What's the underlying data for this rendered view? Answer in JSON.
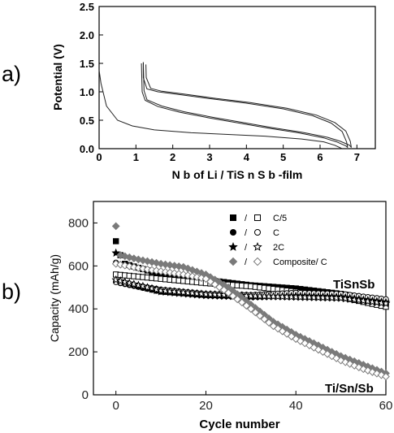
{
  "panel_labels": [
    "a)",
    "b)"
  ],
  "chart_data": [
    {
      "type": "line",
      "panel": "a)",
      "xlabel": "N b  of  Li / TiS n S b -film",
      "ylabel": "Potential (V)",
      "xlim": [
        0,
        7.5
      ],
      "ylim": [
        0,
        2.5
      ],
      "xticks": [
        "0",
        "1",
        "2",
        "3",
        "4",
        "5",
        "6",
        "7"
      ],
      "yticks": [
        "0.0",
        "0.5",
        "1.0",
        "1.5",
        "2.0",
        "2.5"
      ],
      "series": [
        {
          "x": [
            0.0,
            0.05,
            0.2,
            0.5,
            0.9,
            1.5,
            2.5,
            3.5,
            4.5,
            5.5,
            6.1,
            6.4,
            6.6
          ],
          "y": [
            1.38,
            1.15,
            0.75,
            0.5,
            0.4,
            0.33,
            0.28,
            0.25,
            0.22,
            0.17,
            0.12,
            0.06,
            0.0
          ]
        },
        {
          "x": [
            1.15,
            1.17,
            1.25,
            1.6,
            2.2,
            3.0,
            3.8,
            4.6,
            5.4,
            6.1,
            6.45,
            6.7,
            6.75
          ],
          "y": [
            1.5,
            1.0,
            0.85,
            0.74,
            0.64,
            0.54,
            0.45,
            0.36,
            0.28,
            0.19,
            0.12,
            0.05,
            0.02
          ]
        },
        {
          "x": [
            6.75,
            6.72,
            6.6,
            6.3,
            5.8,
            5.0,
            4.0,
            3.0,
            2.2,
            1.6,
            1.3,
            1.2,
            1.2
          ],
          "y": [
            0.02,
            0.12,
            0.3,
            0.45,
            0.58,
            0.7,
            0.8,
            0.88,
            0.95,
            1.0,
            1.05,
            1.25,
            1.52
          ]
        },
        {
          "x": [
            1.2,
            1.22,
            1.3,
            1.7,
            2.3,
            3.1,
            3.9,
            4.7,
            5.5,
            6.2,
            6.55,
            6.8,
            6.85
          ],
          "y": [
            1.52,
            1.02,
            0.86,
            0.75,
            0.65,
            0.55,
            0.46,
            0.37,
            0.29,
            0.2,
            0.13,
            0.06,
            0.02
          ]
        },
        {
          "x": [
            6.85,
            6.82,
            6.7,
            6.4,
            5.9,
            5.1,
            4.1,
            3.1,
            2.3,
            1.7,
            1.4,
            1.28,
            1.27
          ],
          "y": [
            0.02,
            0.13,
            0.31,
            0.46,
            0.59,
            0.71,
            0.81,
            0.89,
            0.96,
            1.01,
            1.06,
            1.25,
            1.48
          ]
        }
      ]
    },
    {
      "type": "scatter",
      "panel": "b)",
      "xlabel": "Cycle number",
      "ylabel": "Capacity (mAh/g)",
      "xlim": [
        -5,
        60
      ],
      "ylim": [
        0,
        900
      ],
      "xticks": [
        "0",
        "20",
        "40",
        "60"
      ],
      "yticks": [
        "0",
        "200",
        "400",
        "600",
        "800"
      ],
      "legend": {
        "placement": "top-right",
        "entries": [
          {
            "filled": "square",
            "open": "square",
            "sep": "/",
            "label": "C/5"
          },
          {
            "filled": "circle",
            "open": "circle",
            "sep": "/",
            "label": "C"
          },
          {
            "filled": "star",
            "open": "star",
            "sep": "/",
            "label": "2C"
          },
          {
            "filled": "diamond",
            "open": "diamond",
            "sep": "/",
            "label": "Composite/ C"
          }
        ]
      },
      "annotations": [
        "TiSnSb",
        "Ti/Sn/Sb"
      ],
      "series": [
        {
          "name": "C/5",
          "marker": "square",
          "fill": "filled",
          "first": [
            [
              0,
              715
            ],
            [
              1,
              650
            ]
          ],
          "points": [
            [
              2,
              610
            ],
            [
              10,
              560
            ],
            [
              20,
              535
            ],
            [
              30,
              510
            ],
            [
              40,
              495
            ],
            [
              50,
              470
            ],
            [
              60,
              430
            ]
          ]
        },
        {
          "name": "C/5",
          "marker": "square",
          "fill": "open",
          "points": [
            [
              0,
              560
            ],
            [
              10,
              540
            ],
            [
              20,
              520
            ],
            [
              30,
              505
            ],
            [
              40,
              480
            ],
            [
              50,
              455
            ],
            [
              60,
              410
            ]
          ]
        },
        {
          "name": "C",
          "marker": "circle",
          "fill": "filled",
          "first": [
            [
              0,
              615
            ]
          ],
          "points": [
            [
              1,
              520
            ],
            [
              10,
              480
            ],
            [
              20,
              465
            ],
            [
              30,
              460
            ],
            [
              40,
              470
            ],
            [
              50,
              465
            ],
            [
              60,
              440
            ]
          ]
        },
        {
          "name": "C",
          "marker": "circle",
          "fill": "open",
          "points": [
            [
              0,
              525
            ],
            [
              10,
              490
            ],
            [
              20,
              470
            ],
            [
              30,
              465
            ],
            [
              40,
              475
            ],
            [
              50,
              470
            ],
            [
              60,
              445
            ]
          ]
        },
        {
          "name": "2C",
          "marker": "star",
          "fill": "filled",
          "first": [
            [
              0,
              660
            ]
          ],
          "points": [
            [
              1,
              530
            ],
            [
              10,
              480
            ],
            [
              20,
              462
            ],
            [
              30,
              455
            ],
            [
              40,
              460
            ],
            [
              50,
              455
            ],
            [
              60,
              430
            ]
          ]
        },
        {
          "name": "2C",
          "marker": "star",
          "fill": "open",
          "points": [
            [
              0,
              535
            ],
            [
              10,
              485
            ],
            [
              20,
              468
            ],
            [
              30,
              460
            ],
            [
              40,
              455
            ],
            [
              50,
              450
            ],
            [
              60,
              425
            ]
          ]
        },
        {
          "name": "Composite/ C",
          "marker": "diamond",
          "fill": "filled",
          "first": [
            [
              0,
              785
            ]
          ],
          "points": [
            [
              1,
              650
            ],
            [
              5,
              630
            ],
            [
              10,
              610
            ],
            [
              15,
              595
            ],
            [
              20,
              560
            ],
            [
              25,
              500
            ],
            [
              30,
              420
            ],
            [
              35,
              340
            ],
            [
              40,
              280
            ],
            [
              45,
              230
            ],
            [
              50,
              180
            ],
            [
              55,
              140
            ],
            [
              60,
              100
            ]
          ]
        },
        {
          "name": "Composite/ C",
          "marker": "diamond",
          "fill": "open",
          "points": [
            [
              0,
              610
            ],
            [
              5,
              590
            ],
            [
              10,
              575
            ],
            [
              15,
              560
            ],
            [
              20,
              540
            ],
            [
              25,
              475
            ],
            [
              30,
              400
            ],
            [
              35,
              320
            ],
            [
              40,
              260
            ],
            [
              45,
              210
            ],
            [
              50,
              160
            ],
            [
              55,
              120
            ],
            [
              60,
              85
            ]
          ]
        }
      ]
    }
  ]
}
